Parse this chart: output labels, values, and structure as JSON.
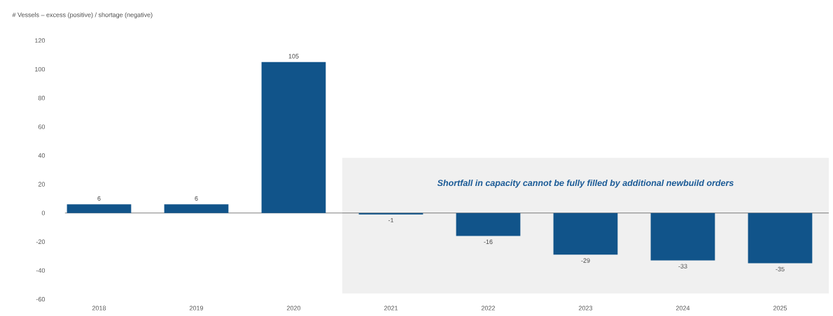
{
  "chart_data": {
    "type": "bar",
    "ylabel": "# Vessels – excess (positive) / shortage (negative)",
    "categories": [
      "2018",
      "2019",
      "2020",
      "2021",
      "2022",
      "2023",
      "2024",
      "2025"
    ],
    "values": [
      6,
      6,
      105,
      -1,
      -16,
      -29,
      -33,
      -35
    ],
    "color": "#11548a",
    "ylim": [
      -60,
      120
    ],
    "yticks": [
      -60,
      -40,
      -20,
      0,
      20,
      40,
      60,
      80,
      100,
      120
    ],
    "data_labels": true,
    "bands": [
      {
        "axis": "x",
        "from": "2021",
        "to": "2025",
        "label": "Shortfall in capacity cannot be fully filled by additional newbuild orders",
        "color": "#f0f0f0"
      }
    ]
  }
}
